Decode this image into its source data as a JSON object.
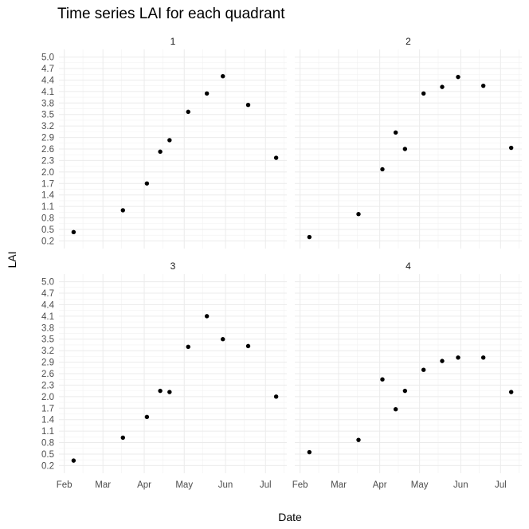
{
  "chart_data": {
    "type": "scatter",
    "title": "Time series LAI for each quadrant",
    "xlabel": "Date",
    "ylabel": "LAI",
    "x_ticks": [
      "Feb",
      "Mar",
      "Apr",
      "May",
      "Jun",
      "Jul"
    ],
    "y_ticks": [
      "0.2",
      "0.5",
      "0.8",
      "1.1",
      "1.4",
      "1.7",
      "2.0",
      "2.3",
      "2.6",
      "2.9",
      "3.2",
      "3.5",
      "3.8",
      "4.1",
      "4.4",
      "4.7",
      "5.0"
    ],
    "ylim": [
      0.0,
      5.2
    ],
    "xlim": [
      "2016-01-28",
      "2016-07-17"
    ],
    "grid": true,
    "point_color": "#000000",
    "panels": [
      {
        "label": "1",
        "points": [
          {
            "x": "2016-02-08",
            "y": 0.43
          },
          {
            "x": "2016-03-16",
            "y": 1.0
          },
          {
            "x": "2016-04-03",
            "y": 1.7
          },
          {
            "x": "2016-04-13",
            "y": 2.53
          },
          {
            "x": "2016-04-20",
            "y": 2.83
          },
          {
            "x": "2016-05-04",
            "y": 3.57
          },
          {
            "x": "2016-05-18",
            "y": 4.05
          },
          {
            "x": "2016-05-30",
            "y": 4.5
          },
          {
            "x": "2016-06-18",
            "y": 3.75
          },
          {
            "x": "2016-07-09",
            "y": 2.37
          }
        ]
      },
      {
        "label": "2",
        "points": [
          {
            "x": "2016-02-08",
            "y": 0.3
          },
          {
            "x": "2016-03-16",
            "y": 0.9
          },
          {
            "x": "2016-04-03",
            "y": 2.07
          },
          {
            "x": "2016-04-13",
            "y": 3.03
          },
          {
            "x": "2016-04-20",
            "y": 2.6
          },
          {
            "x": "2016-05-04",
            "y": 4.05
          },
          {
            "x": "2016-05-18",
            "y": 4.22
          },
          {
            "x": "2016-05-30",
            "y": 4.48
          },
          {
            "x": "2016-06-18",
            "y": 4.25
          },
          {
            "x": "2016-07-09",
            "y": 2.63
          }
        ]
      },
      {
        "label": "3",
        "points": [
          {
            "x": "2016-02-08",
            "y": 0.33
          },
          {
            "x": "2016-03-16",
            "y": 0.93
          },
          {
            "x": "2016-04-03",
            "y": 1.47
          },
          {
            "x": "2016-04-13",
            "y": 2.15
          },
          {
            "x": "2016-04-20",
            "y": 2.12
          },
          {
            "x": "2016-05-04",
            "y": 3.3
          },
          {
            "x": "2016-05-18",
            "y": 4.1
          },
          {
            "x": "2016-05-30",
            "y": 3.5
          },
          {
            "x": "2016-06-18",
            "y": 3.32
          },
          {
            "x": "2016-07-09",
            "y": 2.0
          }
        ]
      },
      {
        "label": "4",
        "points": [
          {
            "x": "2016-02-08",
            "y": 0.55
          },
          {
            "x": "2016-03-16",
            "y": 0.87
          },
          {
            "x": "2016-04-03",
            "y": 2.45
          },
          {
            "x": "2016-04-13",
            "y": 1.67
          },
          {
            "x": "2016-04-20",
            "y": 2.15
          },
          {
            "x": "2016-05-04",
            "y": 2.7
          },
          {
            "x": "2016-05-18",
            "y": 2.93
          },
          {
            "x": "2016-05-30",
            "y": 3.02
          },
          {
            "x": "2016-06-18",
            "y": 3.02
          },
          {
            "x": "2016-07-09",
            "y": 2.12
          }
        ]
      }
    ]
  }
}
